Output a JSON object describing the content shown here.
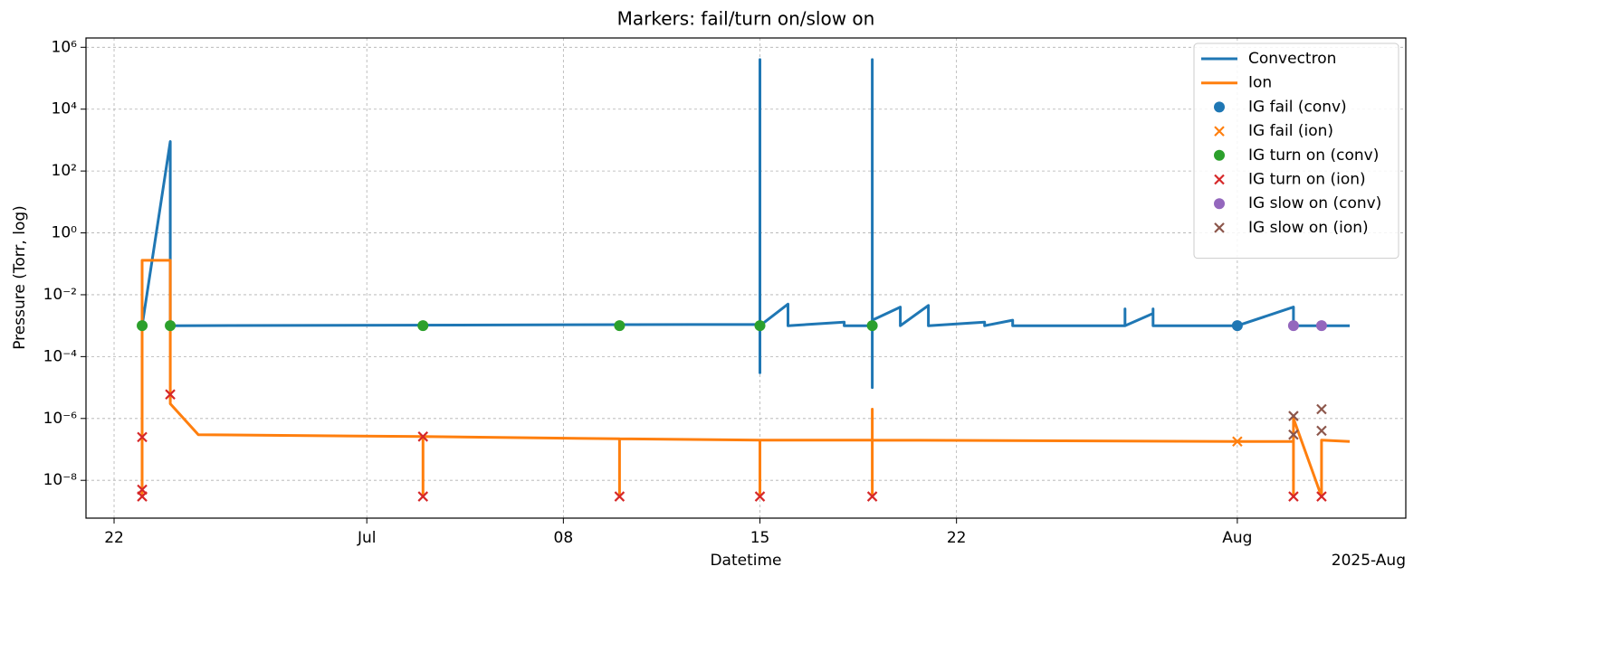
{
  "chart_data": {
    "type": "line",
    "title": "Markers: fail/turn on/slow on",
    "x_label": "Datetime",
    "y_label": "Pressure (Torr, log)",
    "x_offset_label": "2025-Aug",
    "xlim": [
      "2025-06-21",
      "2025-08-07"
    ],
    "xticks": [
      {
        "value": "2025-06-22",
        "label": "22"
      },
      {
        "value": "2025-07-01",
        "label": "Jul"
      },
      {
        "value": "2025-07-08",
        "label": "08"
      },
      {
        "value": "2025-07-15",
        "label": "15"
      },
      {
        "value": "2025-07-22",
        "label": "22"
      },
      {
        "value": "2025-08-01",
        "label": "Aug"
      }
    ],
    "y_scale": "log",
    "ylim": [
      6e-10,
      2000000
    ],
    "yticks": [
      {
        "value": 1e-08,
        "label": "10⁻⁸"
      },
      {
        "value": 1e-06,
        "label": "10⁻⁶"
      },
      {
        "value": 0.0001,
        "label": "10⁻⁴"
      },
      {
        "value": 0.01,
        "label": "10⁻²"
      },
      {
        "value": 1,
        "label": "10⁰"
      },
      {
        "value": 100,
        "label": "10²"
      },
      {
        "value": 10000,
        "label": "10⁴"
      },
      {
        "value": 1000000,
        "label": "10⁶"
      }
    ],
    "grid": true,
    "legend": "upper right",
    "series": [
      {
        "name": "Convectron",
        "kind": "line",
        "color": "#1f77b4",
        "x": [
          "2025-06-23",
          "2025-06-24",
          "2025-06-24",
          "2025-07-15",
          "2025-07-15",
          "2025-07-15",
          "2025-07-15",
          "2025-07-16",
          "2025-07-16",
          "2025-07-18",
          "2025-07-18",
          "2025-07-19",
          "2025-07-19",
          "2025-07-19",
          "2025-07-19",
          "2025-07-19",
          "2025-07-20",
          "2025-07-20",
          "2025-07-21",
          "2025-07-21",
          "2025-07-23",
          "2025-07-23",
          "2025-07-24",
          "2025-07-24",
          "2025-07-28",
          "2025-07-28",
          "2025-07-28",
          "2025-07-29",
          "2025-07-29",
          "2025-07-29",
          "2025-07-29",
          "2025-08-01",
          "2025-08-03",
          "2025-08-03",
          "2025-08-05"
        ],
        "values": [
          0.001,
          900,
          0.001,
          0.0011,
          3e-05,
          400000,
          0.001,
          0.005,
          0.001,
          0.0013,
          0.001,
          0.001,
          1e-05,
          400000,
          0.001,
          0.0015,
          0.004,
          0.001,
          0.0045,
          0.001,
          0.0013,
          0.001,
          0.0015,
          0.001,
          0.001,
          0.0035,
          0.001,
          0.0025,
          0.001,
          0.0035,
          0.001,
          0.001,
          0.004,
          0.001,
          0.001
        ]
      },
      {
        "name": "Ion",
        "kind": "line",
        "color": "#ff7f0e",
        "x": [
          "2025-06-23",
          "2025-06-23",
          "2025-06-24",
          "2025-06-24",
          "2025-06-25",
          "2025-07-03",
          "2025-07-03",
          "2025-07-03",
          "2025-07-10",
          "2025-07-10",
          "2025-07-10",
          "2025-07-15",
          "2025-07-15",
          "2025-07-15",
          "2025-07-19",
          "2025-07-19",
          "2025-07-19",
          "2025-07-19",
          "2025-08-01",
          "2025-08-03",
          "2025-08-03",
          "2025-08-03",
          "2025-08-03",
          "2025-08-04",
          "2025-08-04",
          "2025-08-05"
        ],
        "values": [
          3e-09,
          0.13,
          0.13,
          3e-06,
          3e-07,
          2.6e-07,
          3e-09,
          2.6e-07,
          2.2e-07,
          3e-09,
          2.2e-07,
          2e-07,
          3e-09,
          2e-07,
          2e-07,
          3e-09,
          2e-06,
          2e-07,
          1.8e-07,
          1.8e-07,
          1e-06,
          3e-09,
          1e-06,
          3e-09,
          2e-07,
          1.8e-07
        ]
      },
      {
        "name": "IG fail (conv)",
        "kind": "scatter",
        "marker": "o",
        "color": "#1f77b4",
        "x": [
          "2025-08-01"
        ],
        "values": [
          0.001
        ]
      },
      {
        "name": "IG fail (ion)",
        "kind": "scatter",
        "marker": "x",
        "color": "#ff7f0e",
        "x": [
          "2025-08-01"
        ],
        "values": [
          1.8e-07
        ]
      },
      {
        "name": "IG turn on (conv)",
        "kind": "scatter",
        "marker": "o",
        "color": "#2ca02c",
        "x": [
          "2025-06-23",
          "2025-06-24",
          "2025-07-03",
          "2025-07-10",
          "2025-07-15",
          "2025-07-19"
        ],
        "values": [
          0.001,
          0.001,
          0.001,
          0.001,
          0.001,
          0.001
        ]
      },
      {
        "name": "IG turn on (ion)",
        "kind": "scatter",
        "marker": "x",
        "color": "#d62728",
        "x": [
          "2025-06-23",
          "2025-06-23",
          "2025-06-23",
          "2025-06-24",
          "2025-07-03",
          "2025-07-03",
          "2025-07-10",
          "2025-07-15",
          "2025-07-19",
          "2025-08-03",
          "2025-08-04"
        ],
        "values": [
          2.5e-07,
          3e-09,
          5e-09,
          6e-06,
          2.6e-07,
          3e-09,
          3e-09,
          3e-09,
          3e-09,
          3e-09,
          3e-09
        ]
      },
      {
        "name": "IG slow on (conv)",
        "kind": "scatter",
        "marker": "o",
        "color": "#9467bd",
        "x": [
          "2025-08-03",
          "2025-08-04"
        ],
        "values": [
          0.001,
          0.001
        ]
      },
      {
        "name": "IG slow on (ion)",
        "kind": "scatter",
        "marker": "x",
        "color": "#8c564b",
        "x": [
          "2025-08-03",
          "2025-08-03",
          "2025-08-04",
          "2025-08-04"
        ],
        "values": [
          1.2e-06,
          3e-07,
          2e-06,
          4e-07
        ]
      }
    ]
  }
}
